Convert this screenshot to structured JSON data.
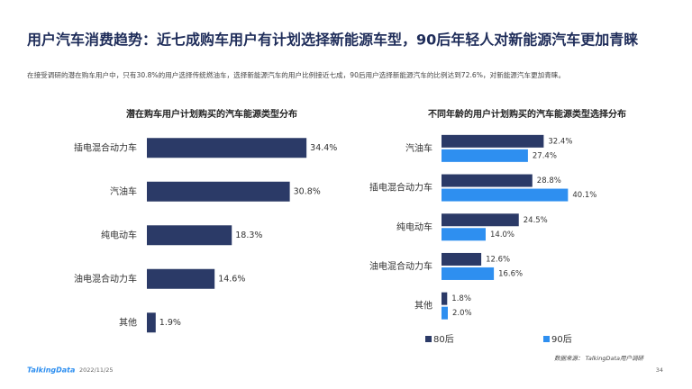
{
  "header": {
    "title": "用户汽车消费趋势：近七成购车用户有计划选择新能源车型，90后年轻人对新能源汽车更加青睐",
    "subtitle": "在接受调研的潜在购车用户中，只有30.8%的用户选择传统燃油车，选择新能源汽车的用户比例接近七成，90后用户选择新能源汽车的比例达到72.6%，对新能源汽车更加青睐。"
  },
  "chart_data": [
    {
      "type": "hbar",
      "title": "潜在购车用户计划购买的汽车能源类型分布",
      "categories": [
        "插电混合动力车",
        "汽油车",
        "纯电动车",
        "油电混合动力车",
        "其他"
      ],
      "values": [
        34.4,
        30.8,
        18.3,
        14.6,
        1.9
      ],
      "value_labels": [
        "34.4%",
        "30.8%",
        "18.3%",
        "14.6%",
        "1.9%"
      ],
      "color": "#2b3a67"
    },
    {
      "type": "grouped_hbar",
      "title": "不同年龄的用户计划购买的汽车能源类型选择分布",
      "categories": [
        "汽油车",
        "插电混合动力车",
        "纯电动车",
        "油电混合动力车",
        "其他"
      ],
      "series": [
        {
          "name": "80后",
          "color": "#2b3a67",
          "values": [
            32.4,
            28.8,
            24.5,
            12.6,
            1.8
          ],
          "value_labels": [
            "32.4%",
            "28.8%",
            "24.5%",
            "12.6%",
            "1.8%"
          ]
        },
        {
          "name": "90后",
          "color": "#2e8ff0",
          "values": [
            27.4,
            40.1,
            14.0,
            16.6,
            2.0
          ],
          "value_labels": [
            "27.4%",
            "40.1%",
            "14.0%",
            "16.6%",
            "2.0%"
          ]
        }
      ],
      "legend": "bottom"
    }
  ],
  "footer": {
    "logo": "TalkingData",
    "date": "2022/11/25",
    "source": "数据来源： TalkingData用户调研",
    "page": "34"
  }
}
